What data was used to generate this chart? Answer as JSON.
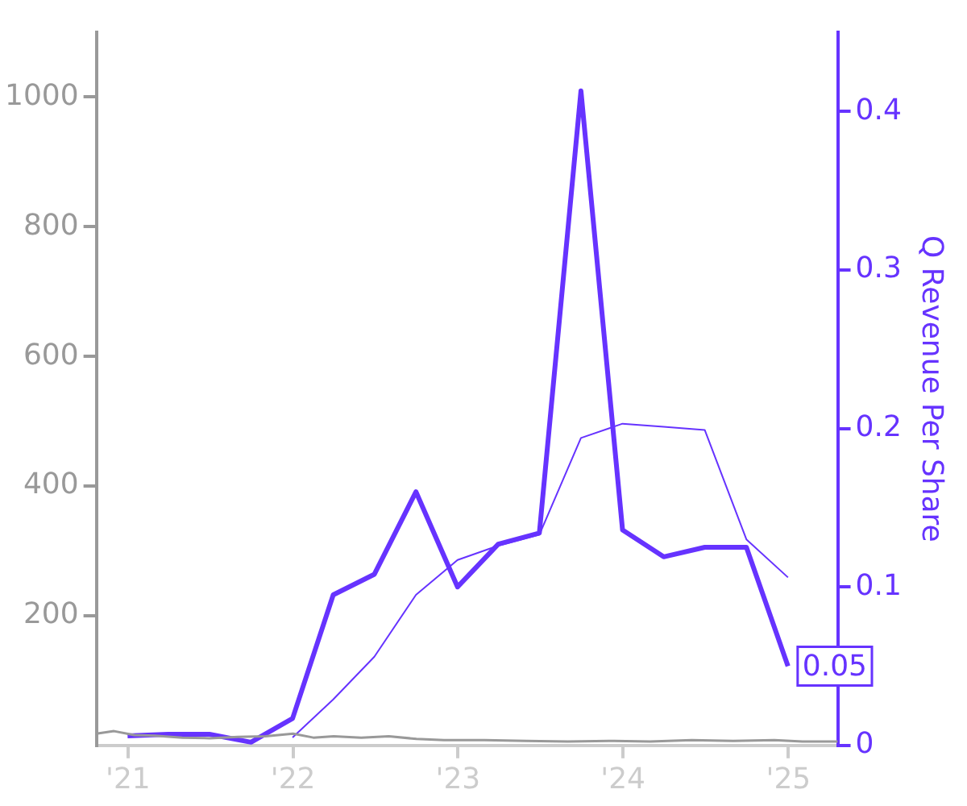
{
  "chart_data": {
    "type": "line",
    "y2label": "Q Revenue Per Share",
    "xlim": [
      "2020-10-23",
      "2025-04-20"
    ],
    "xticks": [
      {
        "value": "2021-01-01",
        "label": "'21"
      },
      {
        "value": "2022-01-01",
        "label": "'22"
      },
      {
        "value": "2023-01-01",
        "label": "'23"
      },
      {
        "value": "2024-01-01",
        "label": "'24"
      },
      {
        "value": "2025-01-01",
        "label": "'25"
      }
    ],
    "ylim": [
      0,
      1100
    ],
    "yticks": [
      200,
      400,
      600,
      800,
      1000
    ],
    "y2lim": [
      0,
      0.45
    ],
    "y2ticks": [
      0,
      0.1,
      0.2,
      0.3,
      0.4
    ],
    "grid": false,
    "legend": false,
    "series": [
      {
        "color": "#6633ff",
        "axis": "y2",
        "x": [
          "2020-12-31",
          "2021-03-31",
          "2021-06-30",
          "2021-09-30",
          "2021-12-31",
          "2022-03-31",
          "2022-06-30",
          "2022-09-30",
          "2022-12-31",
          "2023-03-31",
          "2023-06-30",
          "2023-09-30",
          "2023-12-31",
          "2024-03-31",
          "2024-06-30",
          "2024-09-30",
          "2024-12-31"
        ],
        "values": [
          0.006,
          0.007,
          0.007,
          0.002,
          0.017,
          0.095,
          0.108,
          0.16,
          0.1,
          0.127,
          0.134,
          0.413,
          0.136,
          0.119,
          0.125,
          0.125,
          0.05
        ],
        "value_labels": [
          null,
          null,
          null,
          null,
          null,
          null,
          null,
          null,
          null,
          null,
          null,
          null,
          null,
          null,
          null,
          null,
          "0.05"
        ]
      },
      {
        "color": "#6633ff",
        "axis": "y2",
        "x": [
          "2021-12-31",
          "2022-03-31",
          "2022-06-30",
          "2022-09-30",
          "2022-12-31",
          "2023-03-31",
          "2023-06-30",
          "2023-09-30",
          "2023-12-31",
          "2024-03-31",
          "2024-06-30",
          "2024-09-30",
          "2024-12-31"
        ],
        "values": [
          0.005,
          0.029,
          0.056,
          0.095,
          0.117,
          0.126,
          0.133,
          0.194,
          0.203,
          0.201,
          0.199,
          0.13,
          0.106
        ]
      },
      {
        "color": "#999999",
        "x": [
          "2020-10-23",
          "2020-12-01",
          "2021-01-15",
          "2021-03-01",
          "2021-05-01",
          "2021-07-01",
          "2021-09-01",
          "2021-11-01",
          "2022-01-01",
          "2022-02-15",
          "2022-04-01",
          "2022-06-01",
          "2022-08-01",
          "2022-10-01",
          "2022-12-01",
          "2023-03-01",
          "2023-06-01",
          "2023-09-01",
          "2023-12-01",
          "2024-03-01",
          "2024-06-01",
          "2024-09-01",
          "2024-12-01",
          "2025-02-01",
          "2025-04-20"
        ],
        "values": [
          18,
          22,
          16,
          15,
          12,
          11,
          13,
          14,
          18,
          12,
          14,
          12,
          14,
          10,
          8,
          8,
          7,
          6,
          7,
          6,
          8,
          7,
          8,
          6,
          6
        ]
      }
    ]
  }
}
